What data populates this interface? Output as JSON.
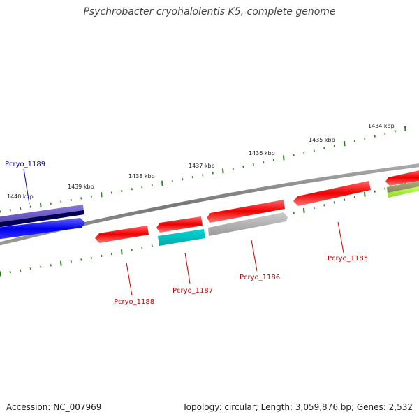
{
  "title": "Psychrobacter cryohalolentis K5, complete genome",
  "footer": {
    "accession": "Accession: NC_007969",
    "summary": "Topology: circular; Length: 3,059,876 bp; Genes: 2,532"
  },
  "ticks": [
    "1440 kbp",
    "1439 kbp",
    "1438 kbp",
    "1437 kbp",
    "1436 kbp",
    "1435 kbp",
    "1434 kbp"
  ],
  "genes": [
    {
      "label": "Pcryo_1189",
      "label_color": "#0000cc"
    },
    {
      "label": "Pcryo_1188",
      "label_color": "#cc0000"
    },
    {
      "label": "Pcryo_1187",
      "label_color": "#cc0000"
    },
    {
      "label": "Pcryo_1186",
      "label_color": "#cc0000"
    },
    {
      "label": "Pcryo_1185",
      "label_color": "#cc0000"
    }
  ],
  "colors": {
    "backbone": "#808080",
    "tick": "#2e7d1e",
    "red_feature": "#ee0000",
    "blue_feature": "#0000ee",
    "navy_feature": "#000066",
    "cyan_feature": "#00bcbc",
    "grey_feature": "#b0b0b0",
    "olive_feature": "#999966",
    "lime_feature": "#99ee33"
  }
}
